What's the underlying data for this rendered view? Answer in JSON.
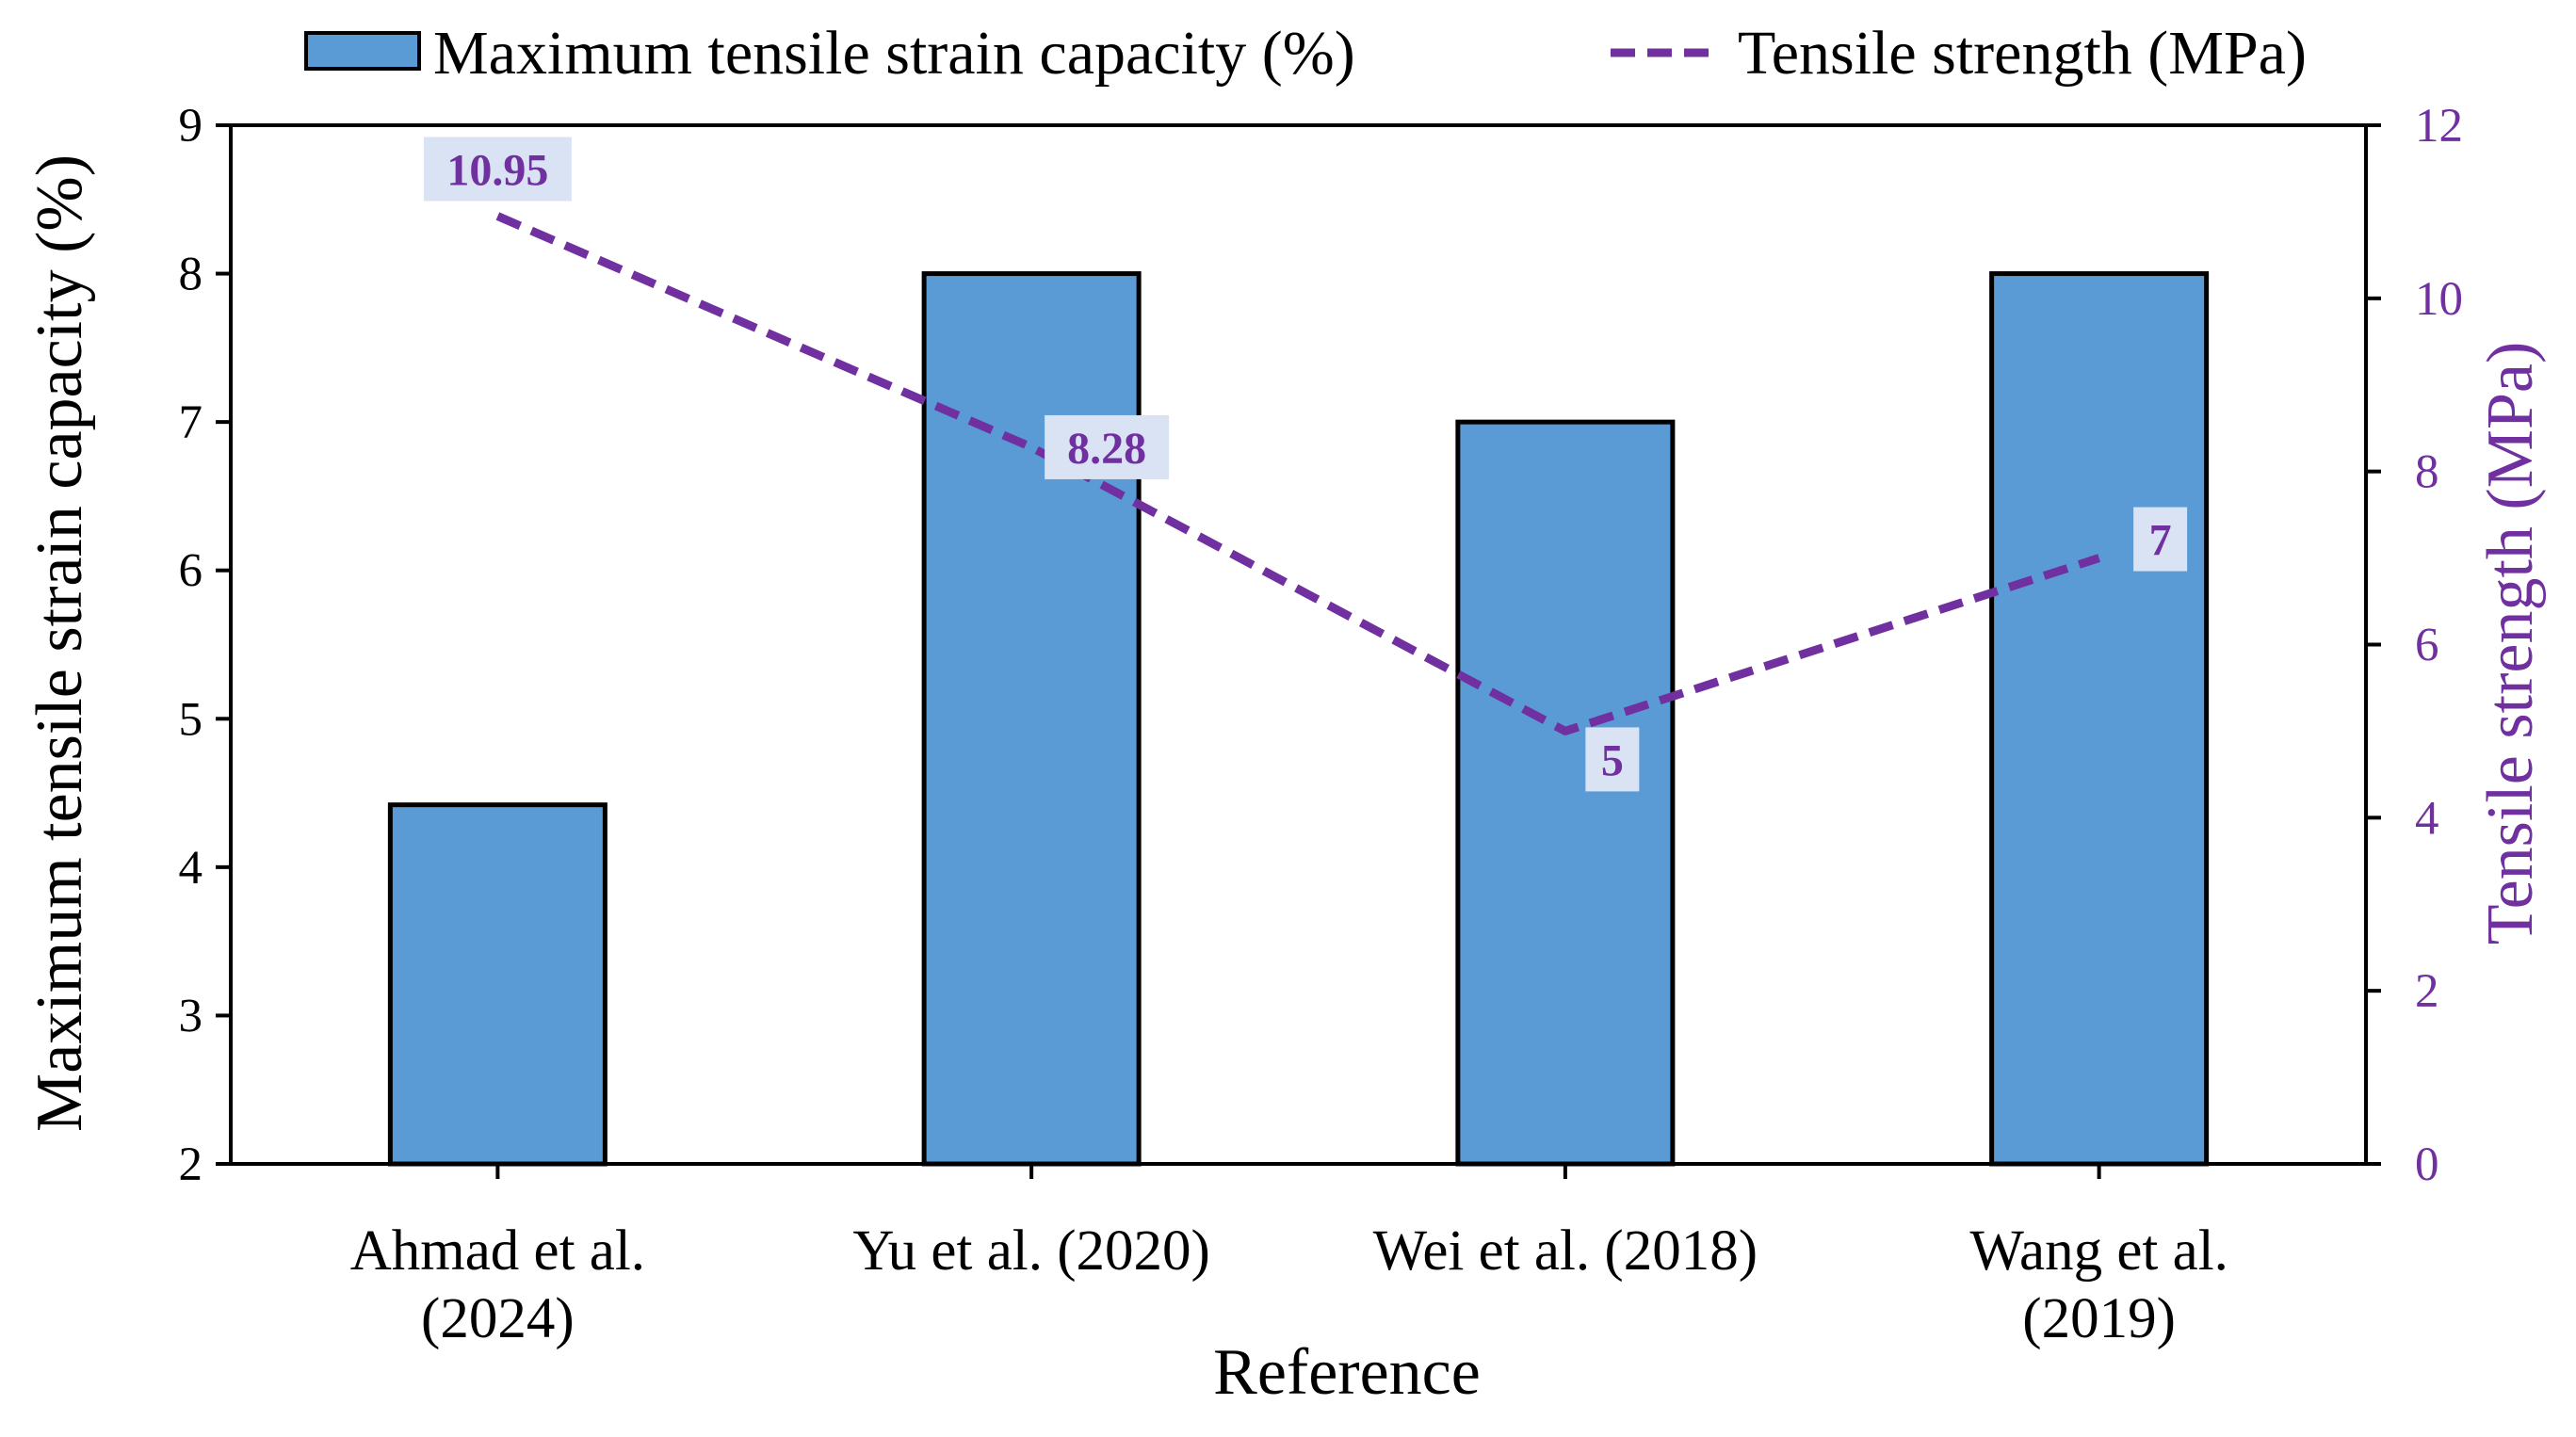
{
  "chart_data": {
    "type": "bar+line",
    "categories": [
      [
        "Ahmad et al.",
        "(2024)"
      ],
      [
        "Yu et al. (2020)"
      ],
      [
        "Wei et al. (2018)"
      ],
      [
        "Wang et al.",
        "(2019)"
      ]
    ],
    "series": [
      {
        "name": "Maximum tensile strain capacity (%)",
        "type": "bar",
        "axis": "left",
        "values": [
          4.42,
          8,
          7,
          8
        ]
      },
      {
        "name": "Tensile strength (MPa)",
        "type": "line",
        "style": "dashed",
        "axis": "right",
        "values": [
          10.95,
          8.28,
          5,
          7
        ],
        "labels": [
          "10.95",
          "8.28",
          "5",
          "7"
        ]
      }
    ],
    "xlabel": "Reference",
    "ylabel_left": "Maximum tensile  strain capacity (%)",
    "ylabel_right": "Tensile strength (MPa)",
    "ylim_left": [
      2,
      9
    ],
    "ylim_right": [
      0,
      12
    ],
    "yticks_left": [
      2,
      3,
      4,
      5,
      6,
      7,
      8,
      9
    ],
    "yticks_right": [
      0,
      2,
      4,
      6,
      8,
      10,
      12
    ],
    "legend_position": "top",
    "grid": false,
    "colors": {
      "bar": "#5b9bd5",
      "bar_edge": "#000000",
      "line": "#7030a0",
      "label_box": "#dae3f3",
      "axis": "#000000"
    }
  }
}
